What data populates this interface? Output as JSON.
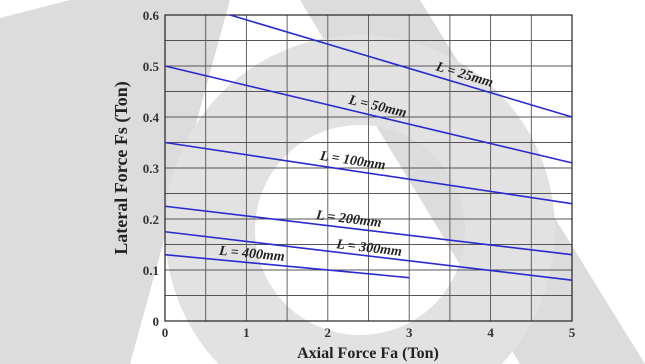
{
  "chart_data": {
    "type": "line",
    "xlabel": "Axial Force Fa (Ton)",
    "ylabel": "Lateral Force Fs (Ton)",
    "xlim": [
      0,
      5
    ],
    "ylim": [
      0,
      0.6
    ],
    "grid": true,
    "x_ticks": [
      "0",
      "1",
      "2",
      "3",
      "4",
      "5"
    ],
    "y_ticks": [
      "0",
      "0.1",
      "0.2",
      "0.3",
      "0.4",
      "0.5",
      "0.6"
    ],
    "series": [
      {
        "name": "L = 25mm",
        "x": [
          0.8,
          5
        ],
        "y": [
          0.6,
          0.4
        ]
      },
      {
        "name": "L = 50mm",
        "x": [
          0,
          5
        ],
        "y": [
          0.5,
          0.31
        ]
      },
      {
        "name": "L = 100mm",
        "x": [
          0,
          5
        ],
        "y": [
          0.35,
          0.23
        ]
      },
      {
        "name": "L = 200mm",
        "x": [
          0,
          5
        ],
        "y": [
          0.225,
          0.13
        ]
      },
      {
        "name": "L = 300mm",
        "x": [
          0,
          5
        ],
        "y": [
          0.175,
          0.08
        ]
      },
      {
        "name": "L = 400mm",
        "x": [
          0,
          3
        ],
        "y": [
          0.13,
          0.085
        ]
      }
    ],
    "line_color": "#2a2ad0",
    "grid_color": "#555555",
    "shading_color": "#dcdcdc"
  }
}
